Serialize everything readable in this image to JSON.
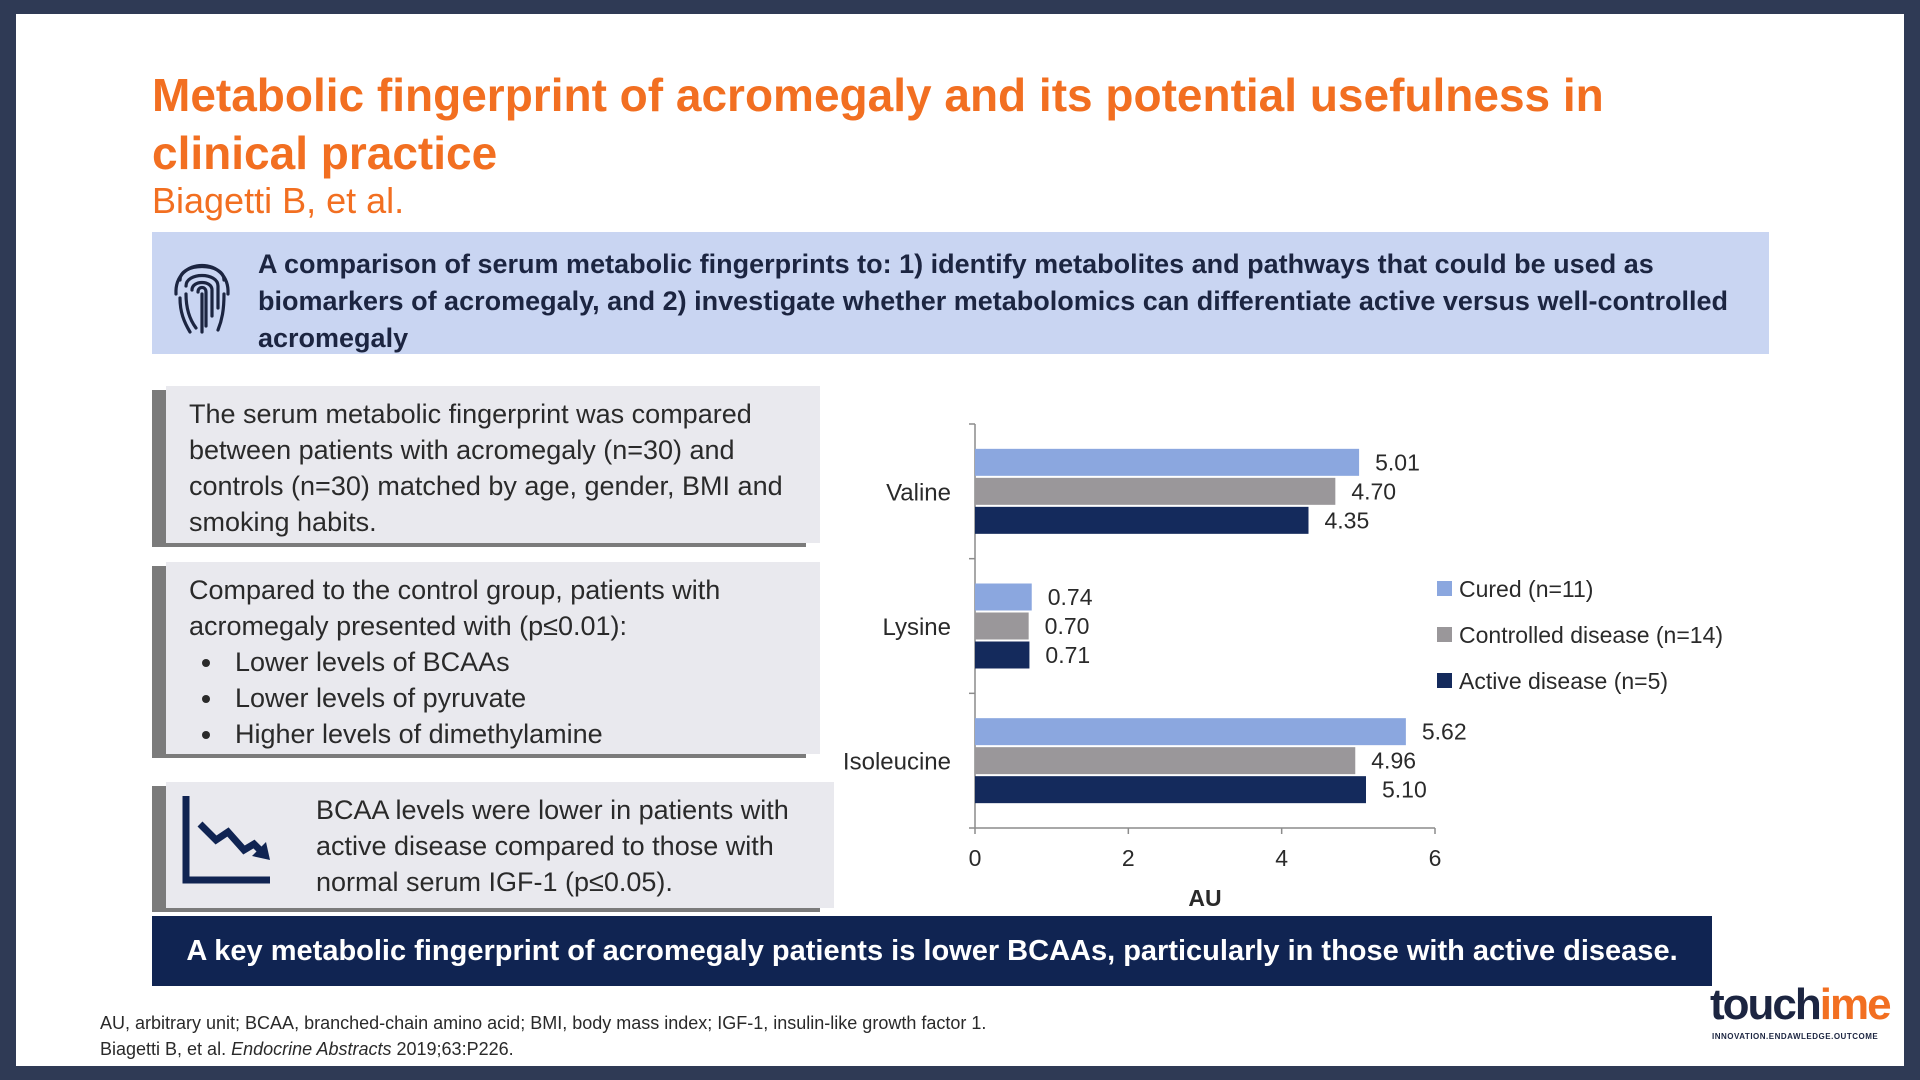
{
  "slide": {
    "title": "Metabolic fingerprint of acromegaly and its potential usefulness in clinical practice",
    "author": "Biagetti B, et al.",
    "objective": "A comparison of serum metabolic fingerprints to: 1) identify metabolites and pathways that could be used as biomarkers of acromegaly, and 2) investigate whether metabolomics can differentiate active versus well-controlled acromegaly"
  },
  "boxes": {
    "box1": "The serum metabolic fingerprint was compared between patients with acromegaly (n=30) and controls (n=30) matched by age, gender, BMI and smoking habits.",
    "box2_intro": "Compared to the control group, patients with acromegaly presented with (p≤0.01):",
    "box2_bullets": [
      "Lower levels of BCAAs",
      "Lower levels of pyruvate",
      "Higher levels of dimethylamine"
    ],
    "box3": "BCAA levels were lower in patients with active disease compared to those with normal serum IGF-1 (p≤0.05)."
  },
  "banner": "A key metabolic fingerprint of acromegaly patients is lower BCAAs, particularly in those with active disease.",
  "footnote": {
    "line1": "AU, arbitrary unit; BCAA, branched-chain amino acid; BMI, body mass index; IGF-1, insulin-like growth factor 1.",
    "line2_prefix": "Biagetti B, et al. ",
    "line2_journal": "Endocrine Abstracts",
    "line2_suffix": " 2019;63:P226."
  },
  "logo": {
    "word_main": "touch",
    "word_accent": "ime",
    "tagline": "INNOVATION.ENDAWLEDGE.OUTCOME"
  },
  "icons": {
    "objective": "fingerprint-icon",
    "box3": "declining-trend-icon"
  },
  "colors": {
    "title": "#f26f21",
    "banner": "#102452",
    "objective_bg": "#c9d5f2"
  },
  "chart_data": {
    "type": "bar",
    "orientation": "horizontal",
    "categories": [
      "Valine",
      "Lysine",
      "Isoleucine"
    ],
    "series": [
      {
        "name": "Cured (n=11)",
        "color": "#8ba7df",
        "values": [
          5.01,
          0.74,
          5.62
        ],
        "labels": [
          "5.01",
          "0.74",
          "5.62"
        ]
      },
      {
        "name": "Controlled disease (n=14)",
        "color": "#9a979a",
        "values": [
          4.7,
          0.7,
          4.96
        ],
        "labels": [
          "4.70",
          "0.70",
          "4.96"
        ]
      },
      {
        "name": "Active disease (n=5)",
        "color": "#142a5c",
        "values": [
          4.35,
          0.71,
          5.1
        ],
        "labels": [
          "4.35",
          "0.71",
          "5.10"
        ]
      }
    ],
    "xlabel": "AU",
    "xlim": [
      0,
      6
    ],
    "xticks": [
      "0",
      "2",
      "4",
      "6"
    ],
    "grid": false,
    "legend": "right"
  }
}
